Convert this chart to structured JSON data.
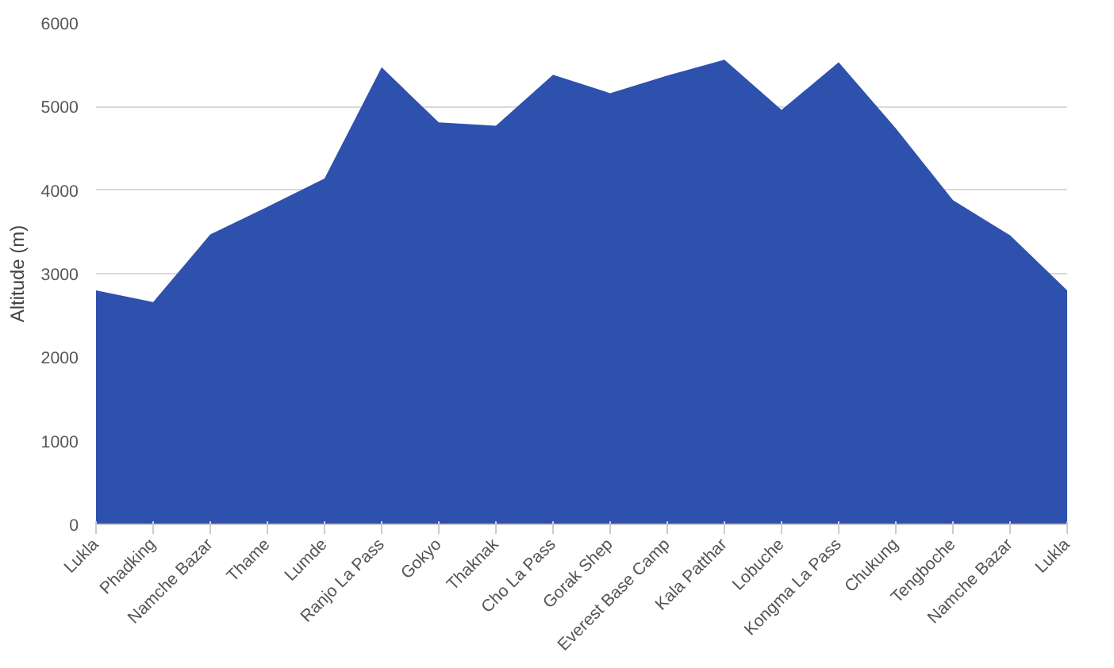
{
  "chart_data": {
    "type": "area",
    "ylabel": "Altitude (m)",
    "categories": [
      "Lukla",
      "Phadking",
      "Namche Bazar",
      "Thame",
      "Lumde",
      "Ranjo La Pass",
      "Gokyo",
      "Thaknak",
      "Cho La Pass",
      "Gorak Shep",
      "Everest Base Camp",
      "Kala Patthar",
      "Lobuche",
      "Kongma La Pass",
      "Chukung",
      "Tengboche",
      "Namche Bazar",
      "Lukla"
    ],
    "values": [
      2800,
      2660,
      3470,
      3800,
      4140,
      5470,
      4810,
      4770,
      5380,
      5160,
      5370,
      5560,
      4960,
      5530,
      4740,
      3880,
      3460,
      2800
    ],
    "color": "#2e51ad",
    "ylim": [
      0,
      6000
    ],
    "yticks": [
      0,
      1000,
      2000,
      3000,
      4000,
      5000,
      6000
    ],
    "grid": "y"
  }
}
